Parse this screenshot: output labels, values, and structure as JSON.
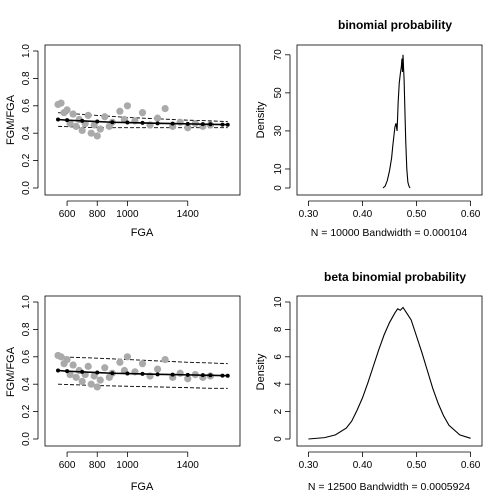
{
  "chart_data": [
    {
      "type": "scatter",
      "title": "",
      "xlabel": "FGA",
      "ylabel": "FGM/FGA",
      "xlim": [
        500,
        1700
      ],
      "ylim": [
        0,
        1
      ],
      "x_ticks": [
        "600",
        "800",
        "1000",
        "1400"
      ],
      "x_tick_values": [
        600,
        800,
        1000,
        1400
      ],
      "y_ticks": [
        "0.0",
        "0.2",
        "0.4",
        "0.6",
        "0.8",
        "1.0"
      ],
      "y_tick_values": [
        0,
        0.2,
        0.4,
        0.6,
        0.8,
        1.0
      ],
      "observed_color": "#aaaaaa",
      "fitted_color": "#000000",
      "observed": [
        [
          540,
          0.61
        ],
        [
          560,
          0.62
        ],
        [
          580,
          0.55
        ],
        [
          600,
          0.57
        ],
        [
          620,
          0.47
        ],
        [
          640,
          0.54
        ],
        [
          660,
          0.45
        ],
        [
          680,
          0.5
        ],
        [
          700,
          0.42
        ],
        [
          720,
          0.47
        ],
        [
          740,
          0.53
        ],
        [
          760,
          0.4
        ],
        [
          780,
          0.46
        ],
        [
          800,
          0.38
        ],
        [
          820,
          0.43
        ],
        [
          850,
          0.52
        ],
        [
          880,
          0.45
        ],
        [
          900,
          0.48
        ],
        [
          950,
          0.56
        ],
        [
          980,
          0.5
        ],
        [
          1000,
          0.6
        ],
        [
          1050,
          0.49
        ],
        [
          1100,
          0.55
        ],
        [
          1150,
          0.46
        ],
        [
          1200,
          0.51
        ],
        [
          1250,
          0.58
        ],
        [
          1300,
          0.45
        ],
        [
          1350,
          0.48
        ],
        [
          1400,
          0.44
        ],
        [
          1450,
          0.47
        ],
        [
          1500,
          0.45
        ],
        [
          1550,
          0.46
        ]
      ],
      "fitted": [
        [
          540,
          0.5
        ],
        [
          600,
          0.495
        ],
        [
          700,
          0.49
        ],
        [
          800,
          0.485
        ],
        [
          900,
          0.48
        ],
        [
          1000,
          0.478
        ],
        [
          1100,
          0.475
        ],
        [
          1200,
          0.472
        ],
        [
          1300,
          0.47
        ],
        [
          1400,
          0.468
        ],
        [
          1500,
          0.466
        ],
        [
          1550,
          0.465
        ],
        [
          1630,
          0.463
        ],
        [
          1665,
          0.462
        ]
      ],
      "interval_low": [
        [
          540,
          0.45
        ],
        [
          800,
          0.44
        ],
        [
          1000,
          0.44
        ],
        [
          1200,
          0.44
        ],
        [
          1400,
          0.44
        ],
        [
          1550,
          0.44
        ],
        [
          1665,
          0.44
        ]
      ],
      "interval_high": [
        [
          540,
          0.55
        ],
        [
          800,
          0.53
        ],
        [
          1000,
          0.515
        ],
        [
          1200,
          0.505
        ],
        [
          1400,
          0.495
        ],
        [
          1550,
          0.49
        ],
        [
          1665,
          0.485
        ]
      ]
    },
    {
      "type": "line",
      "title": "binomial probability",
      "xlabel": "N = 10000   Bandwidth = 0.000104",
      "ylabel": "Density",
      "xlim": [
        0.29,
        0.61
      ],
      "ylim": [
        0,
        72
      ],
      "x_ticks": [
        "0.30",
        "0.40",
        "0.50",
        "0.60"
      ],
      "x_tick_values": [
        0.3,
        0.4,
        0.5,
        0.6
      ],
      "y_ticks": [
        "0",
        "10",
        "30",
        "50",
        "70"
      ],
      "y_tick_values": [
        0,
        10,
        30,
        50,
        70
      ],
      "x": [
        0.438,
        0.442,
        0.446,
        0.45,
        0.454,
        0.456,
        0.458,
        0.46,
        0.462,
        0.464,
        0.465,
        0.466,
        0.468,
        0.47,
        0.472,
        0.473,
        0.474,
        0.475,
        0.476,
        0.477,
        0.478,
        0.48,
        0.482,
        0.484,
        0.486,
        0.488
      ],
      "y": [
        0,
        1,
        4,
        9,
        16,
        22,
        27,
        32,
        34,
        30,
        37,
        45,
        55,
        60,
        64,
        68,
        61,
        70,
        63,
        57,
        46,
        25,
        10,
        3,
        1,
        0
      ]
    },
    {
      "type": "scatter",
      "title": "",
      "xlabel": "FGA",
      "ylabel": "FGM/FGA",
      "xlim": [
        500,
        1700
      ],
      "ylim": [
        0,
        1
      ],
      "x_ticks": [
        "600",
        "800",
        "1000",
        "1400"
      ],
      "x_tick_values": [
        600,
        800,
        1000,
        1400
      ],
      "y_ticks": [
        "0.0",
        "0.2",
        "0.4",
        "0.6",
        "0.8",
        "1.0"
      ],
      "y_tick_values": [
        0,
        0.2,
        0.4,
        0.6,
        0.8,
        1.0
      ],
      "observed_color": "#aaaaaa",
      "fitted_color": "#000000",
      "observed": [
        [
          540,
          0.61
        ],
        [
          560,
          0.6
        ],
        [
          580,
          0.55
        ],
        [
          600,
          0.58
        ],
        [
          620,
          0.47
        ],
        [
          640,
          0.54
        ],
        [
          660,
          0.45
        ],
        [
          680,
          0.5
        ],
        [
          700,
          0.42
        ],
        [
          720,
          0.47
        ],
        [
          740,
          0.53
        ],
        [
          760,
          0.4
        ],
        [
          780,
          0.46
        ],
        [
          800,
          0.38
        ],
        [
          820,
          0.43
        ],
        [
          850,
          0.52
        ],
        [
          880,
          0.45
        ],
        [
          900,
          0.48
        ],
        [
          950,
          0.56
        ],
        [
          980,
          0.5
        ],
        [
          1000,
          0.6
        ],
        [
          1050,
          0.49
        ],
        [
          1100,
          0.55
        ],
        [
          1150,
          0.46
        ],
        [
          1200,
          0.51
        ],
        [
          1250,
          0.58
        ],
        [
          1300,
          0.45
        ],
        [
          1350,
          0.48
        ],
        [
          1400,
          0.44
        ],
        [
          1450,
          0.47
        ],
        [
          1500,
          0.45
        ],
        [
          1550,
          0.46
        ]
      ],
      "fitted": [
        [
          540,
          0.5
        ],
        [
          600,
          0.495
        ],
        [
          700,
          0.49
        ],
        [
          800,
          0.485
        ],
        [
          900,
          0.48
        ],
        [
          1000,
          0.478
        ],
        [
          1100,
          0.475
        ],
        [
          1200,
          0.472
        ],
        [
          1300,
          0.47
        ],
        [
          1400,
          0.468
        ],
        [
          1500,
          0.466
        ],
        [
          1550,
          0.465
        ],
        [
          1630,
          0.463
        ],
        [
          1665,
          0.462
        ]
      ],
      "interval_low": [
        [
          540,
          0.4
        ],
        [
          800,
          0.39
        ],
        [
          1000,
          0.385
        ],
        [
          1200,
          0.38
        ],
        [
          1400,
          0.375
        ],
        [
          1550,
          0.37
        ],
        [
          1665,
          0.37
        ]
      ],
      "interval_high": [
        [
          540,
          0.6
        ],
        [
          800,
          0.59
        ],
        [
          1000,
          0.58
        ],
        [
          1200,
          0.57
        ],
        [
          1400,
          0.56
        ],
        [
          1550,
          0.555
        ],
        [
          1665,
          0.55
        ]
      ]
    },
    {
      "type": "line",
      "title": "beta binomial probability",
      "xlabel": "N = 12500   Bandwidth = 0.0005924",
      "ylabel": "Density",
      "xlim": [
        0.29,
        0.61
      ],
      "ylim": [
        0,
        10
      ],
      "x_ticks": [
        "0.30",
        "0.40",
        "0.50",
        "0.60"
      ],
      "x_tick_values": [
        0.3,
        0.4,
        0.5,
        0.6
      ],
      "y_ticks": [
        "0",
        "2",
        "4",
        "6",
        "8",
        "10"
      ],
      "y_tick_values": [
        0,
        2,
        4,
        6,
        8,
        10
      ],
      "x": [
        0.3,
        0.33,
        0.35,
        0.37,
        0.38,
        0.39,
        0.4,
        0.41,
        0.42,
        0.43,
        0.44,
        0.45,
        0.46,
        0.465,
        0.47,
        0.475,
        0.48,
        0.49,
        0.5,
        0.51,
        0.52,
        0.53,
        0.54,
        0.55,
        0.56,
        0.58,
        0.6
      ],
      "y": [
        0,
        0.1,
        0.3,
        0.8,
        1.3,
        2.1,
        3.0,
        4.1,
        5.3,
        6.5,
        7.6,
        8.5,
        9.2,
        9.5,
        9.4,
        9.6,
        9.3,
        8.7,
        7.5,
        6.3,
        5.0,
        3.7,
        2.6,
        1.7,
        1.0,
        0.3,
        0.05
      ]
    }
  ]
}
